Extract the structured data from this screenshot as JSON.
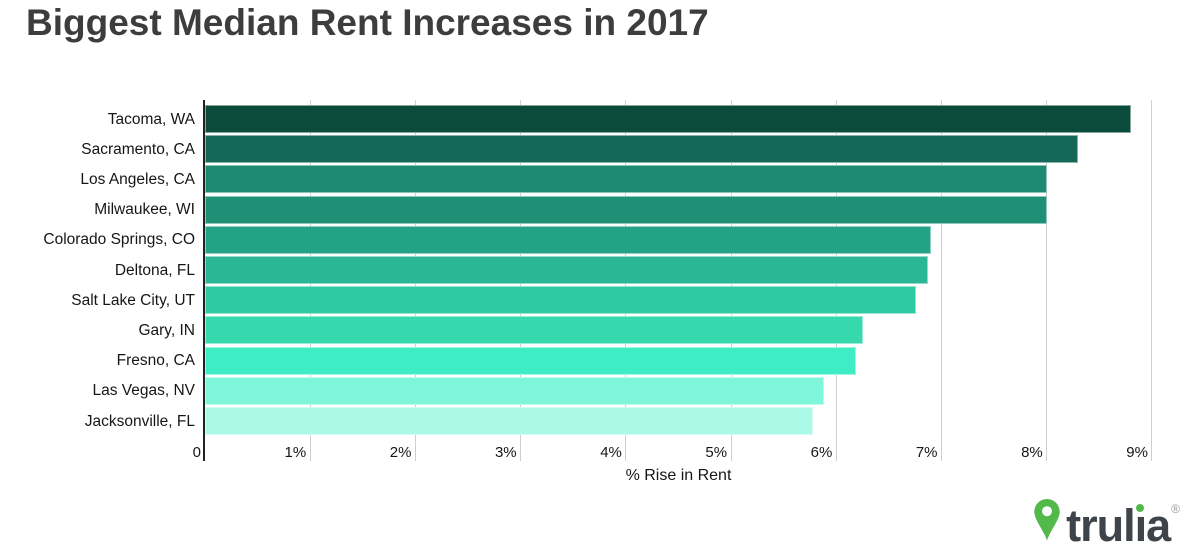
{
  "chart_data": {
    "type": "bar",
    "orientation": "horizontal",
    "title": "Biggest Median Rent Increases in 2017",
    "xlabel": "% Rise in Rent",
    "categories": [
      "Tacoma, WA",
      "Sacramento, CA",
      "Los Angeles, CA",
      "Milwaukee, WI",
      "Colorado Springs, CO",
      "Deltona, FL",
      "Salt Lake City, UT",
      "Gary, IN",
      "Fresno, CA",
      "Las Vegas, NV",
      "Jacksonville, FL"
    ],
    "values": [
      8.8,
      8.3,
      8.0,
      8.0,
      6.9,
      6.87,
      6.76,
      6.25,
      6.19,
      5.88,
      5.78
    ],
    "bar_colors": [
      "#0a4b3b",
      "#156857",
      "#1d8971",
      "#1f8f75",
      "#23a386",
      "#29b795",
      "#2fcaa2",
      "#36d9ae",
      "#3fedc4",
      "#7ff6da",
      "#aafae7"
    ],
    "xlim": [
      0,
      9
    ],
    "x_ticks": [
      "0",
      "1%",
      "2%",
      "3%",
      "4%",
      "5%",
      "6%",
      "7%",
      "8%",
      "9%"
    ],
    "grid": true,
    "legend": false
  },
  "colors": {
    "title": "#3d3d3d",
    "axis_line": "#222222",
    "gridline": "#cfcfcf",
    "labels": "#161616"
  },
  "logo": {
    "brand": "trulia",
    "registered": "®",
    "pin_color": "#53b94a",
    "text_color": "#3f444a"
  }
}
